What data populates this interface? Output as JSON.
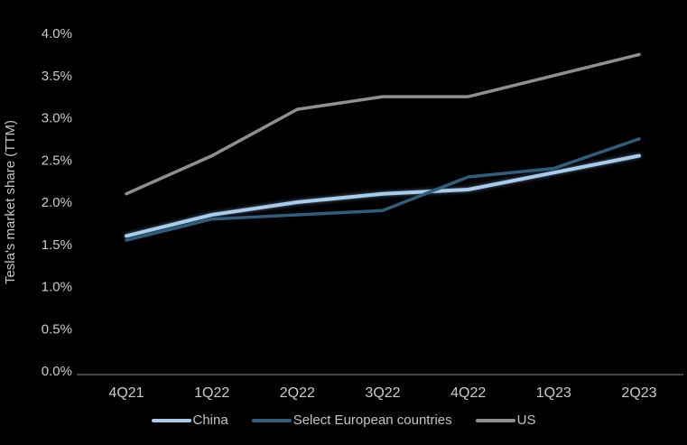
{
  "background_color": "#000000",
  "text_color": "#cbcbcb",
  "axis_line_color": "#5a5a5a",
  "chart_data": {
    "type": "line",
    "title": "",
    "xlabel": "",
    "ylabel": "Tesla's market share (TTM)",
    "categories": [
      "4Q21",
      "1Q22",
      "2Q22",
      "3Q22",
      "4Q22",
      "1Q23",
      "2Q23"
    ],
    "series": [
      {
        "name": "China",
        "color": "#a7cced",
        "values": [
          1.6,
          1.85,
          2.0,
          2.1,
          2.15,
          2.35,
          2.55
        ]
      },
      {
        "name": "Select European countries",
        "color": "#2e5d7d",
        "values": [
          1.55,
          1.8,
          1.85,
          1.9,
          2.3,
          2.4,
          2.75
        ]
      },
      {
        "name": "US",
        "color": "#8f8f8f",
        "values": [
          2.1,
          2.55,
          3.1,
          3.25,
          3.25,
          3.5,
          3.75
        ]
      }
    ],
    "ylim": [
      0.0,
      4.0
    ],
    "ytick_step": 0.5,
    "ytick_labels": [
      "0.0%",
      "0.5%",
      "1.0%",
      "1.5%",
      "2.0%",
      "2.5%",
      "3.0%",
      "3.5%",
      "4.0%"
    ],
    "grid": false,
    "legend_position": "bottom"
  }
}
